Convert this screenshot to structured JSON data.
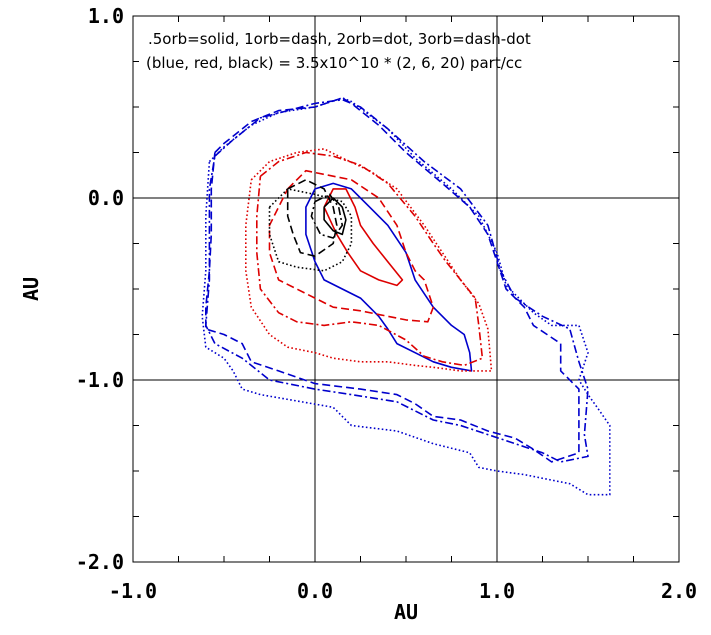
{
  "chart_data": {
    "type": "line",
    "title": "",
    "xlabel": "AU",
    "ylabel": "AU",
    "xlim": [
      -1.0,
      2.0
    ],
    "ylim": [
      -2.0,
      1.0
    ],
    "xticks": [
      "-1.0",
      "0.0",
      "1.0",
      "2.0"
    ],
    "yticks": [
      "1.0",
      "0.0",
      "-1.0",
      "-2.0"
    ],
    "xtick_values": [
      -1.0,
      0.0,
      1.0,
      2.0
    ],
    "ytick_values": [
      1.0,
      0.0,
      -1.0,
      -2.0
    ],
    "grid_lines": {
      "x": [
        0.0,
        1.0
      ],
      "y": [
        0.0,
        -1.0
      ]
    },
    "annotations": [
      ".5orb=solid, 1orb=dash, 2orb=dot, 3orb=dash-dot",
      "(blue, red, black) = 3.5x10^10 * (2, 6, 20) part/cc"
    ],
    "colors": {
      "blue": "#0000cc",
      "red": "#dd0000",
      "black": "#000000"
    },
    "series": [
      {
        "color": "blue",
        "style": "solid",
        "points": [
          [
            0.0,
            0.05
          ],
          [
            0.1,
            0.08
          ],
          [
            0.2,
            0.05
          ],
          [
            0.3,
            -0.05
          ],
          [
            0.4,
            -0.15
          ],
          [
            0.5,
            -0.3
          ],
          [
            0.55,
            -0.45
          ],
          [
            0.65,
            -0.6
          ],
          [
            0.75,
            -0.7
          ],
          [
            0.82,
            -0.75
          ],
          [
            0.85,
            -0.85
          ],
          [
            0.86,
            -0.95
          ],
          [
            0.75,
            -0.93
          ],
          [
            0.65,
            -0.9
          ],
          [
            0.55,
            -0.85
          ],
          [
            0.45,
            -0.8
          ],
          [
            0.4,
            -0.72
          ],
          [
            0.35,
            -0.65
          ],
          [
            0.25,
            -0.55
          ],
          [
            0.15,
            -0.5
          ],
          [
            0.05,
            -0.45
          ],
          [
            0.0,
            -0.35
          ],
          [
            -0.05,
            -0.2
          ],
          [
            -0.05,
            -0.05
          ],
          [
            0.0,
            0.05
          ]
        ]
      },
      {
        "color": "blue",
        "style": "dash",
        "points": [
          [
            -0.55,
            0.25
          ],
          [
            -0.5,
            0.3
          ],
          [
            -0.35,
            0.42
          ],
          [
            -0.2,
            0.48
          ],
          [
            0.0,
            0.5
          ],
          [
            0.15,
            0.55
          ],
          [
            0.2,
            0.52
          ],
          [
            0.35,
            0.4
          ],
          [
            0.5,
            0.25
          ],
          [
            0.7,
            0.08
          ],
          [
            0.85,
            -0.05
          ],
          [
            0.95,
            -0.2
          ],
          [
            1.0,
            -0.35
          ],
          [
            1.05,
            -0.5
          ],
          [
            1.15,
            -0.6
          ],
          [
            1.2,
            -0.7
          ],
          [
            1.35,
            -0.8
          ],
          [
            1.35,
            -0.95
          ],
          [
            1.45,
            -1.05
          ],
          [
            1.45,
            -1.4
          ],
          [
            1.3,
            -1.45
          ],
          [
            1.2,
            -1.38
          ],
          [
            1.1,
            -1.32
          ],
          [
            0.95,
            -1.28
          ],
          [
            0.8,
            -1.22
          ],
          [
            0.65,
            -1.2
          ],
          [
            0.55,
            -1.13
          ],
          [
            0.45,
            -1.08
          ],
          [
            0.25,
            -1.05
          ],
          [
            0.0,
            -1.02
          ],
          [
            -0.2,
            -0.95
          ],
          [
            -0.35,
            -0.9
          ],
          [
            -0.4,
            -0.8
          ],
          [
            -0.5,
            -0.75
          ],
          [
            -0.6,
            -0.72
          ],
          [
            -0.6,
            -0.6
          ],
          [
            -0.58,
            -0.4
          ],
          [
            -0.57,
            -0.2
          ],
          [
            -0.57,
            0.05
          ],
          [
            -0.55,
            0.25
          ]
        ]
      },
      {
        "color": "blue",
        "style": "dot",
        "points": [
          [
            -0.58,
            0.2
          ],
          [
            -0.5,
            0.28
          ],
          [
            -0.35,
            0.4
          ],
          [
            -0.2,
            0.47
          ],
          [
            0.0,
            0.5
          ],
          [
            0.15,
            0.55
          ],
          [
            0.2,
            0.53
          ],
          [
            0.4,
            0.38
          ],
          [
            0.55,
            0.22
          ],
          [
            0.75,
            0.05
          ],
          [
            0.9,
            -0.1
          ],
          [
            1.0,
            -0.3
          ],
          [
            1.05,
            -0.48
          ],
          [
            1.2,
            -0.63
          ],
          [
            1.3,
            -0.7
          ],
          [
            1.45,
            -0.7
          ],
          [
            1.5,
            -0.85
          ],
          [
            1.45,
            -1.0
          ],
          [
            1.5,
            -1.08
          ],
          [
            1.55,
            -1.15
          ],
          [
            1.62,
            -1.25
          ],
          [
            1.62,
            -1.63
          ],
          [
            1.5,
            -1.63
          ],
          [
            1.4,
            -1.57
          ],
          [
            1.3,
            -1.55
          ],
          [
            1.15,
            -1.52
          ],
          [
            1.0,
            -1.5
          ],
          [
            0.9,
            -1.48
          ],
          [
            0.85,
            -1.4
          ],
          [
            0.65,
            -1.35
          ],
          [
            0.45,
            -1.28
          ],
          [
            0.2,
            -1.25
          ],
          [
            0.1,
            -1.15
          ],
          [
            -0.3,
            -1.08
          ],
          [
            -0.4,
            -1.05
          ],
          [
            -0.45,
            -0.95
          ],
          [
            -0.5,
            -0.88
          ],
          [
            -0.6,
            -0.82
          ],
          [
            -0.62,
            -0.65
          ],
          [
            -0.6,
            -0.4
          ],
          [
            -0.6,
            -0.1
          ],
          [
            -0.58,
            0.2
          ]
        ]
      },
      {
        "color": "blue",
        "style": "dash-dot",
        "points": [
          [
            -0.55,
            0.23
          ],
          [
            -0.45,
            0.32
          ],
          [
            -0.3,
            0.44
          ],
          [
            -0.15,
            0.48
          ],
          [
            0.0,
            0.52
          ],
          [
            0.15,
            0.54
          ],
          [
            0.25,
            0.5
          ],
          [
            0.4,
            0.38
          ],
          [
            0.6,
            0.2
          ],
          [
            0.8,
            0.05
          ],
          [
            0.95,
            -0.15
          ],
          [
            1.02,
            -0.4
          ],
          [
            1.1,
            -0.55
          ],
          [
            1.25,
            -0.65
          ],
          [
            1.4,
            -0.72
          ],
          [
            1.45,
            -0.9
          ],
          [
            1.5,
            -1.05
          ],
          [
            1.48,
            -1.3
          ],
          [
            1.5,
            -1.42
          ],
          [
            1.35,
            -1.45
          ],
          [
            1.25,
            -1.4
          ],
          [
            1.1,
            -1.35
          ],
          [
            0.95,
            -1.3
          ],
          [
            0.8,
            -1.25
          ],
          [
            0.65,
            -1.22
          ],
          [
            0.45,
            -1.12
          ],
          [
            0.2,
            -1.08
          ],
          [
            0.0,
            -1.05
          ],
          [
            -0.25,
            -1.0
          ],
          [
            -0.4,
            -0.88
          ],
          [
            -0.55,
            -0.8
          ],
          [
            -0.6,
            -0.7
          ],
          [
            -0.58,
            -0.45
          ],
          [
            -0.58,
            -0.15
          ],
          [
            -0.58,
            0.05
          ],
          [
            -0.55,
            0.23
          ]
        ]
      },
      {
        "color": "red",
        "style": "solid",
        "points": [
          [
            0.05,
            -0.05
          ],
          [
            0.1,
            0.05
          ],
          [
            0.17,
            0.05
          ],
          [
            0.22,
            -0.05
          ],
          [
            0.25,
            -0.15
          ],
          [
            0.32,
            -0.25
          ],
          [
            0.4,
            -0.35
          ],
          [
            0.48,
            -0.45
          ],
          [
            0.45,
            -0.48
          ],
          [
            0.35,
            -0.45
          ],
          [
            0.25,
            -0.4
          ],
          [
            0.18,
            -0.3
          ],
          [
            0.12,
            -0.2
          ],
          [
            0.05,
            -0.05
          ]
        ]
      },
      {
        "color": "red",
        "style": "dash",
        "points": [
          [
            -0.15,
            0.05
          ],
          [
            -0.05,
            0.15
          ],
          [
            0.1,
            0.12
          ],
          [
            0.2,
            0.1
          ],
          [
            0.35,
            0.0
          ],
          [
            0.45,
            -0.15
          ],
          [
            0.5,
            -0.3
          ],
          [
            0.55,
            -0.4
          ],
          [
            0.6,
            -0.45
          ],
          [
            0.65,
            -0.6
          ],
          [
            0.62,
            -0.68
          ],
          [
            0.5,
            -0.67
          ],
          [
            0.4,
            -0.65
          ],
          [
            0.25,
            -0.62
          ],
          [
            0.1,
            -0.6
          ],
          [
            0.0,
            -0.55
          ],
          [
            -0.1,
            -0.5
          ],
          [
            -0.2,
            -0.45
          ],
          [
            -0.25,
            -0.3
          ],
          [
            -0.25,
            -0.15
          ],
          [
            -0.15,
            0.05
          ]
        ]
      },
      {
        "color": "red",
        "style": "dot",
        "points": [
          [
            -0.35,
            0.1
          ],
          [
            -0.25,
            0.2
          ],
          [
            -0.1,
            0.25
          ],
          [
            0.05,
            0.27
          ],
          [
            0.15,
            0.22
          ],
          [
            0.3,
            0.15
          ],
          [
            0.45,
            0.05
          ],
          [
            0.6,
            -0.15
          ],
          [
            0.7,
            -0.3
          ],
          [
            0.8,
            -0.45
          ],
          [
            0.9,
            -0.58
          ],
          [
            0.95,
            -0.72
          ],
          [
            0.97,
            -0.95
          ],
          [
            0.8,
            -0.95
          ],
          [
            0.65,
            -0.93
          ],
          [
            0.55,
            -0.92
          ],
          [
            0.4,
            -0.9
          ],
          [
            0.25,
            -0.9
          ],
          [
            0.1,
            -0.88
          ],
          [
            0.0,
            -0.85
          ],
          [
            -0.15,
            -0.82
          ],
          [
            -0.25,
            -0.75
          ],
          [
            -0.35,
            -0.6
          ],
          [
            -0.38,
            -0.4
          ],
          [
            -0.38,
            -0.15
          ],
          [
            -0.35,
            0.1
          ]
        ]
      },
      {
        "color": "red",
        "style": "dash-dot",
        "points": [
          [
            -0.3,
            0.12
          ],
          [
            -0.2,
            0.2
          ],
          [
            -0.05,
            0.25
          ],
          [
            0.1,
            0.23
          ],
          [
            0.25,
            0.18
          ],
          [
            0.4,
            0.08
          ],
          [
            0.55,
            -0.1
          ],
          [
            0.65,
            -0.25
          ],
          [
            0.72,
            -0.35
          ],
          [
            0.8,
            -0.45
          ],
          [
            0.88,
            -0.55
          ],
          [
            0.9,
            -0.7
          ],
          [
            0.92,
            -0.88
          ],
          [
            0.82,
            -0.92
          ],
          [
            0.7,
            -0.9
          ],
          [
            0.6,
            -0.87
          ],
          [
            0.5,
            -0.78
          ],
          [
            0.35,
            -0.7
          ],
          [
            0.2,
            -0.68
          ],
          [
            0.05,
            -0.7
          ],
          [
            -0.1,
            -0.68
          ],
          [
            -0.2,
            -0.63
          ],
          [
            -0.3,
            -0.5
          ],
          [
            -0.32,
            -0.3
          ],
          [
            -0.32,
            -0.1
          ],
          [
            -0.3,
            0.12
          ]
        ]
      },
      {
        "color": "black",
        "style": "solid",
        "points": [
          [
            0.05,
            -0.05
          ],
          [
            0.1,
            0.0
          ],
          [
            0.15,
            -0.05
          ],
          [
            0.17,
            -0.12
          ],
          [
            0.15,
            -0.2
          ],
          [
            0.1,
            -0.18
          ],
          [
            0.05,
            -0.12
          ],
          [
            0.05,
            -0.05
          ]
        ]
      },
      {
        "color": "black",
        "style": "dash",
        "points": [
          [
            -0.15,
            0.05
          ],
          [
            -0.05,
            0.1
          ],
          [
            0.05,
            0.05
          ],
          [
            0.1,
            -0.05
          ],
          [
            0.12,
            -0.15
          ],
          [
            0.1,
            -0.25
          ],
          [
            0.0,
            -0.32
          ],
          [
            -0.08,
            -0.3
          ],
          [
            -0.12,
            -0.2
          ],
          [
            -0.15,
            -0.1
          ],
          [
            -0.15,
            0.05
          ]
        ]
      },
      {
        "color": "black",
        "style": "dot",
        "points": [
          [
            -0.25,
            -0.05
          ],
          [
            -0.15,
            0.05
          ],
          [
            0.0,
            0.02
          ],
          [
            0.15,
            -0.02
          ],
          [
            0.2,
            -0.1
          ],
          [
            0.2,
            -0.25
          ],
          [
            0.15,
            -0.35
          ],
          [
            0.05,
            -0.4
          ],
          [
            -0.1,
            -0.38
          ],
          [
            -0.2,
            -0.35
          ],
          [
            -0.25,
            -0.2
          ],
          [
            -0.25,
            -0.05
          ]
        ]
      },
      {
        "color": "black",
        "style": "dash-dot",
        "points": [
          [
            0.0,
            -0.02
          ],
          [
            0.08,
            0.02
          ],
          [
            0.13,
            -0.05
          ],
          [
            0.15,
            -0.15
          ],
          [
            0.1,
            -0.22
          ],
          [
            0.03,
            -0.2
          ],
          [
            -0.02,
            -0.1
          ],
          [
            0.0,
            -0.02
          ]
        ]
      }
    ]
  }
}
